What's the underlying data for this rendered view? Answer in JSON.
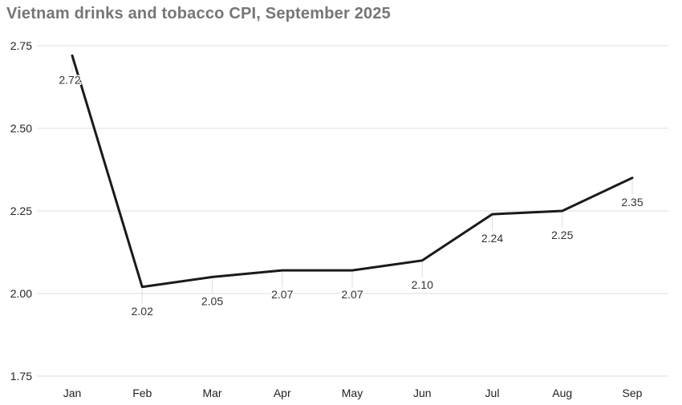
{
  "header": {
    "title": "Vietnam drinks and tobacco CPI, September 2025"
  },
  "chart_data": {
    "type": "line",
    "title": "Vietnam drinks and tobacco CPI, September 2025",
    "categories": [
      "Jan",
      "Feb",
      "Mar",
      "Apr",
      "May",
      "Jun",
      "Jul",
      "Aug",
      "Sep"
    ],
    "values": [
      2.72,
      2.02,
      2.05,
      2.07,
      2.07,
      2.1,
      2.24,
      2.25,
      2.35
    ],
    "point_labels": [
      "2.72",
      "2.02",
      "2.05",
      "2.07",
      "2.07",
      "2.10",
      "2.24",
      "2.25",
      "2.35"
    ],
    "series_name": "Vietnam drinks and tobacco CPI",
    "xlabel": "",
    "ylabel": "",
    "ylim": [
      1.75,
      2.75
    ],
    "y_ticks": [
      2.75,
      2.5,
      2.25,
      2.0,
      1.75
    ],
    "y_tick_labels": [
      "2.75",
      "2.50",
      "2.25",
      "2.00",
      "1.75"
    ],
    "grid": true,
    "legend": false,
    "colors": {
      "line": "#1a1a1a",
      "grid": "#dddddd",
      "leader": "#dddddd",
      "title": "#757575",
      "axis_text": "#222222",
      "data_label": "#333333",
      "background": "#ffffff"
    }
  }
}
